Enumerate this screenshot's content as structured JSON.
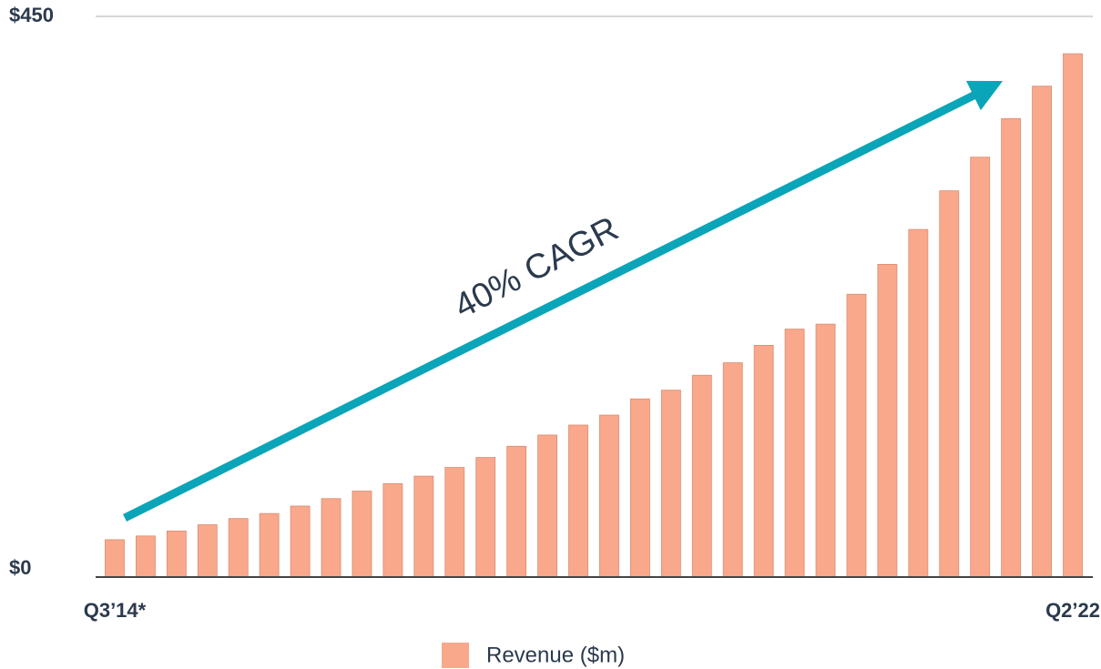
{
  "chart_data": {
    "type": "bar",
    "categories": [
      "Q3’14*",
      null,
      null,
      null,
      null,
      null,
      null,
      null,
      null,
      null,
      null,
      null,
      null,
      null,
      null,
      null,
      null,
      null,
      null,
      null,
      null,
      null,
      null,
      null,
      null,
      null,
      null,
      null,
      null,
      null,
      null,
      "Q2’22"
    ],
    "series": [
      {
        "name": "Revenue ($m)",
        "color": "#f9a88b",
        "values": [
          30,
          33,
          37,
          42,
          47,
          51,
          57,
          63,
          69,
          75,
          81,
          88,
          96,
          105,
          114,
          122,
          130,
          143,
          150,
          162,
          172,
          186,
          199,
          203,
          227,
          251,
          279,
          310,
          337,
          368,
          394,
          420
        ]
      }
    ],
    "ylim": [
      0,
      450
    ],
    "yticks": [
      {
        "value": 0,
        "label": "$0"
      },
      {
        "value": 450,
        "label": "$450"
      }
    ],
    "grid": true,
    "legend": "bottom",
    "annotations": [
      "40% CAGR"
    ]
  }
}
